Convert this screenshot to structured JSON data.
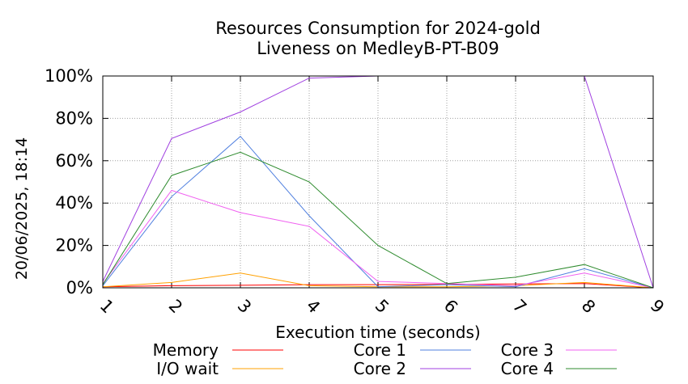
{
  "chart_data": {
    "type": "line",
    "title": "Resources Consumption for 2024-gold",
    "subtitle": "Liveness on MedleyB-PT-B09",
    "xlabel": "Execution time (seconds)",
    "ylabel": "",
    "x": [
      1,
      2,
      3,
      4,
      5,
      6,
      7,
      8,
      9
    ],
    "x_ticks": [
      "1",
      "2",
      "3",
      "4",
      "5",
      "6",
      "7",
      "8",
      "9"
    ],
    "xlim": [
      1,
      9
    ],
    "ylim": [
      0,
      100
    ],
    "y_ticks": [
      0,
      20,
      40,
      60,
      80,
      100
    ],
    "y_tick_labels": [
      "0%",
      "20%",
      "40%",
      "60%",
      "80%",
      "100%"
    ],
    "grid": true,
    "legend_position": "bottom",
    "series": [
      {
        "name": "Memory",
        "color": "#ff0000",
        "values": [
          0.5,
          1,
          1.2,
          1.5,
          1.5,
          1.6,
          1.8,
          2,
          0
        ]
      },
      {
        "name": "I/O wait",
        "color": "#ffa000",
        "values": [
          0.5,
          2.5,
          7,
          1,
          0.5,
          0.5,
          1,
          2.5,
          0
        ]
      },
      {
        "name": "Core 1",
        "color": "#4f7fdf",
        "values": [
          1,
          43,
          71.5,
          34,
          0.5,
          1.5,
          0.5,
          9,
          0
        ]
      },
      {
        "name": "Core 2",
        "color": "#a040e0",
        "values": [
          3,
          70.5,
          83,
          99,
          100,
          100,
          100,
          100,
          0
        ]
      },
      {
        "name": "Core 3",
        "color": "#f060f0",
        "values": [
          2,
          46,
          35.5,
          29,
          3,
          2,
          1,
          7,
          0
        ]
      },
      {
        "name": "Core 4",
        "color": "#2e8b2e",
        "values": [
          1.5,
          53,
          64,
          50,
          20,
          2,
          5,
          11,
          0
        ]
      }
    ]
  },
  "timestamp": "20/06/2025, 18:14"
}
